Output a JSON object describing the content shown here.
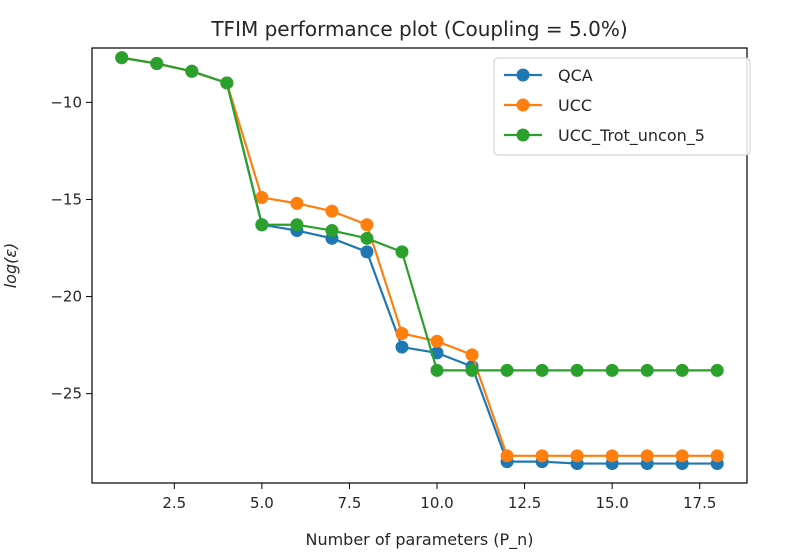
{
  "chart_data": {
    "type": "line",
    "title": "TFIM performance plot (Coupling = 5.0%)",
    "xlabel": "Number of parameters (P_n)",
    "ylabel": "log(ε)",
    "xlim": [
      0.15,
      18.85
    ],
    "ylim": [
      -29.6,
      -7.2
    ],
    "xticks": [
      2.5,
      5.0,
      7.5,
      10.0,
      12.5,
      15.0,
      17.5
    ],
    "xtick_labels": [
      "2.5",
      "5.0",
      "7.5",
      "10.0",
      "12.5",
      "15.0",
      "17.5"
    ],
    "yticks": [
      -10,
      -15,
      -20,
      -25
    ],
    "ytick_labels": [
      "−10",
      "−15",
      "−20",
      "−25"
    ],
    "grid": false,
    "legend_position": "top-right",
    "x": [
      1,
      2,
      3,
      4,
      5,
      6,
      7,
      8,
      9,
      10,
      11,
      12,
      13,
      14,
      15,
      16,
      17,
      18
    ],
    "series": [
      {
        "name": "QCA",
        "color": "#1f77b4",
        "values": [
          -7.7,
          -8.0,
          -8.4,
          -9.0,
          -16.3,
          -16.6,
          -17.0,
          -17.7,
          -22.6,
          -22.9,
          -23.6,
          -28.5,
          -28.5,
          -28.6,
          -28.6,
          -28.6,
          -28.6,
          -28.6
        ]
      },
      {
        "name": "UCC",
        "color": "#ff7f0e",
        "values": [
          -7.7,
          -8.0,
          -8.4,
          -9.0,
          -14.9,
          -15.2,
          -15.6,
          -16.3,
          -21.9,
          -22.3,
          -23.0,
          -28.2,
          -28.2,
          -28.2,
          -28.2,
          -28.2,
          -28.2,
          -28.2
        ]
      },
      {
        "name": "UCC_Trot_uncon_5",
        "color": "#2ca02c",
        "values": [
          -7.7,
          -8.0,
          -8.4,
          -9.0,
          -16.3,
          -16.3,
          -16.6,
          -17.0,
          -17.7,
          -23.8,
          -23.8,
          -23.8,
          -23.8,
          -23.8,
          -23.8,
          -23.8,
          -23.8,
          -23.8
        ]
      }
    ]
  }
}
